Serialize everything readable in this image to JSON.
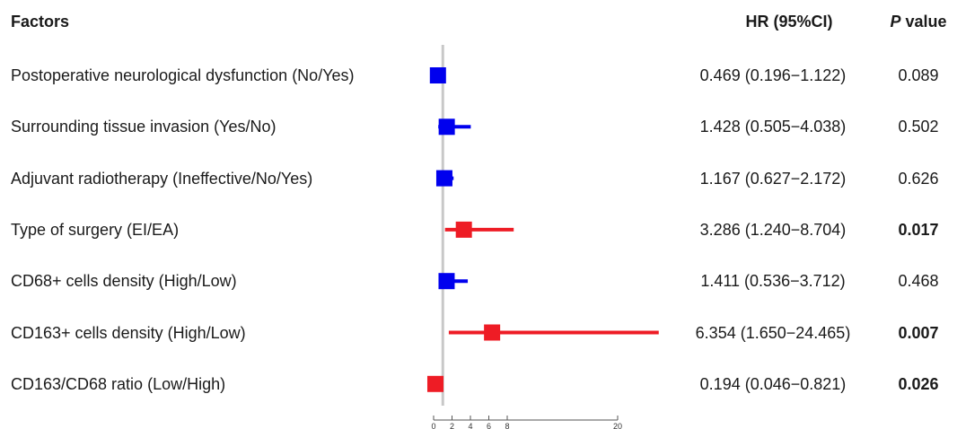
{
  "headers": {
    "factors": "Factors",
    "hr": "HR (95%CI)",
    "p_italic": "P",
    "p_rest": " value"
  },
  "colors": {
    "nonsignificant": "#0000ee",
    "significant": "#ee1c25",
    "refline": "#c8c8c8",
    "axis": "#555555"
  },
  "chart_data": {
    "type": "forest",
    "reference_value": 1,
    "xlim": [
      0,
      20
    ],
    "xticks": [
      0,
      2,
      4,
      6,
      8,
      20
    ],
    "rows": [
      {
        "factor": "Postoperative neurological dysfunction (No/Yes)",
        "hr": 0.469,
        "lower": 0.196,
        "upper": 1.122,
        "hr_text": "0.469 (0.196−1.122)",
        "p": "0.089",
        "significant": false
      },
      {
        "factor": "Surrounding tissue invasion (Yes/No)",
        "hr": 1.428,
        "lower": 0.505,
        "upper": 4.038,
        "hr_text": "1.428 (0.505−4.038)",
        "p": "0.502",
        "significant": false
      },
      {
        "factor": "Adjuvant radiotherapy (Ineffective/No/Yes)",
        "hr": 1.167,
        "lower": 0.627,
        "upper": 2.172,
        "hr_text": "1.167 (0.627−2.172)",
        "p": "0.626",
        "significant": false
      },
      {
        "factor": "Type of surgery (EI/EA)",
        "hr": 3.286,
        "lower": 1.24,
        "upper": 8.704,
        "hr_text": "3.286 (1.240−8.704)",
        "p": "0.017",
        "significant": true
      },
      {
        "factor": "CD68+ cells density (High/Low)",
        "hr": 1.411,
        "lower": 0.536,
        "upper": 3.712,
        "hr_text": "1.411 (0.536−3.712)",
        "p": "0.468",
        "significant": false
      },
      {
        "factor": "CD163+ cells density (High/Low)",
        "hr": 6.354,
        "lower": 1.65,
        "upper": 24.465,
        "hr_text": "6.354 (1.650−24.465)",
        "p": "0.007",
        "significant": true
      },
      {
        "factor": "CD163/CD68 ratio (Low/High)",
        "hr": 0.194,
        "lower": 0.046,
        "upper": 0.821,
        "hr_text": "0.194 (0.046−0.821)",
        "p": "0.026",
        "significant": true
      }
    ]
  }
}
